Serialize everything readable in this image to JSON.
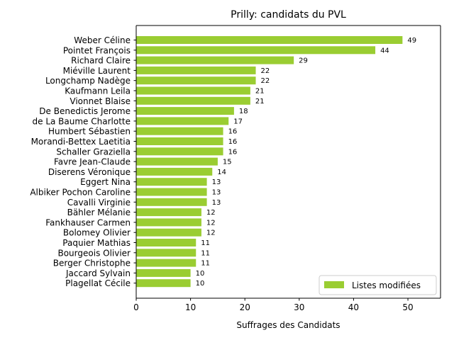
{
  "chart_data": {
    "type": "bar",
    "orientation": "horizontal",
    "title": "Prilly: candidats du PVL",
    "xlabel": "Suffrages des Candidats",
    "ylabel": "",
    "xlim": [
      0,
      56
    ],
    "xticks": [
      0,
      10,
      20,
      30,
      40,
      50
    ],
    "grid": false,
    "legend_position": "bottom-right",
    "categories": [
      "Weber Céline",
      "Pointet François",
      "Richard Claire",
      "Miéville Laurent",
      "Longchamp Nadège",
      "Kaufmann Leila",
      "Vionnet Blaise",
      "De Benedictis Jerome",
      "de La Baume Charlotte",
      "Humbert Sébastien",
      "Morandi-Bettex Laetitia",
      "Schaller Graziella",
      "Favre Jean-Claude",
      "Diserens Véronique",
      "Eggert Nina",
      "Albiker Pochon Caroline",
      "Cavalli Virginie",
      "Bähler Mélanie",
      "Fankhauser Carmen",
      "Bolomey Olivier",
      "Paquier Mathias",
      "Bourgeois Olivier",
      "Berger Christophe",
      "Jaccard Sylvain",
      "Plagellat Cécile"
    ],
    "series": [
      {
        "name": "Listes modifiées",
        "color": "#9acd32",
        "values": [
          49,
          44,
          29,
          22,
          22,
          21,
          21,
          18,
          17,
          16,
          16,
          16,
          15,
          14,
          13,
          13,
          13,
          12,
          12,
          12,
          11,
          11,
          11,
          10,
          10
        ]
      }
    ]
  }
}
